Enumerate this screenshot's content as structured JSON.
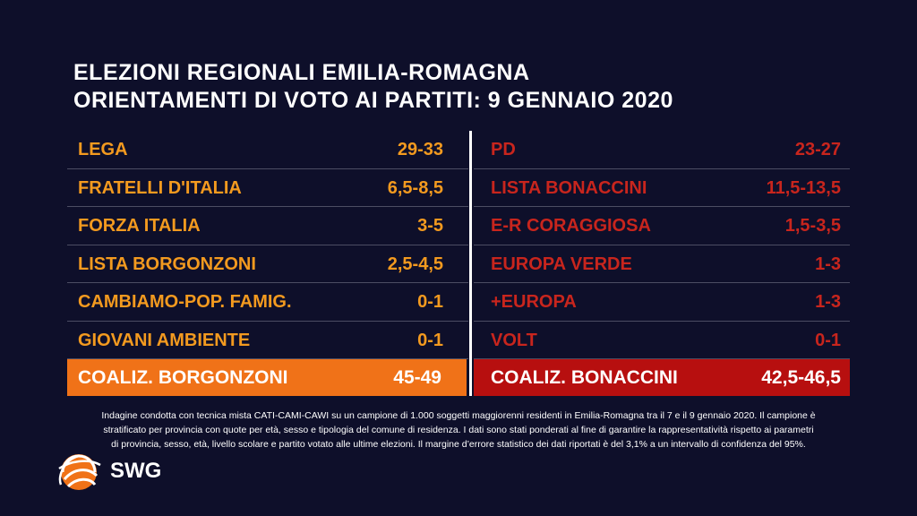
{
  "title": {
    "line1": "ELEZIONI REGIONALI EMILIA-ROMAGNA",
    "line2": "ORIENTAMENTI DI VOTO AI PARTITI: 9 GENNAIO 2020"
  },
  "chart_data": {
    "type": "table",
    "left": {
      "rows": [
        {
          "party": "LEGA",
          "range": "29-33"
        },
        {
          "party": "FRATELLI D'ITALIA",
          "range": "6,5-8,5"
        },
        {
          "party": "FORZA ITALIA",
          "range": "3-5"
        },
        {
          "party": "LISTA BORGONZONI",
          "range": "2,5-4,5"
        },
        {
          "party": "CAMBIAMO-POP. FAMIG.",
          "range": "0-1"
        },
        {
          "party": "GIOVANI AMBIENTE",
          "range": "0-1"
        }
      ],
      "total": {
        "party": "COALIZ. BORGONZONI",
        "range": "45-49"
      }
    },
    "right": {
      "rows": [
        {
          "party": "PD",
          "range": "23-27"
        },
        {
          "party": "LISTA BONACCINI",
          "range": "11,5-13,5"
        },
        {
          "party": "E-R CORAGGIOSA",
          "range": "1,5-3,5"
        },
        {
          "party": "EUROPA VERDE",
          "range": "1-3"
        },
        {
          "party": "+EUROPA",
          "range": "1-3"
        },
        {
          "party": "VOLT",
          "range": "0-1"
        }
      ],
      "total": {
        "party": "COALIZ. BONACCINI",
        "range": "42,5-46,5"
      }
    },
    "colors": {
      "left_text": "#f39a1f",
      "left_total_bg": "#f07218",
      "right_text": "#c8251d",
      "right_total_bg": "#b70f0f",
      "background": "#0e0f2a"
    }
  },
  "footnote": {
    "line1": "Indagine condotta con tecnica mista CATI-CAMI-CAWI su un campione di 1.000 soggetti maggiorenni residenti in Emilia-Romagna tra il 7 e il 9 gennaio 2020. Il campione è",
    "line2": "stratificato per provincia con quote per età, sesso e tipologia del comune di residenza. I dati sono stati ponderati al fine di garantire la rappresentatività rispetto ai parametri",
    "line3": "di provincia, sesso, età, livello scolare e partito votato alle ultime elezioni. Il margine d’errore statistico dei dati riportati è del 3,1% a un intervallo di confidenza del 95%."
  },
  "logo": {
    "text": "SWG",
    "icon": "swg-globe-icon"
  }
}
